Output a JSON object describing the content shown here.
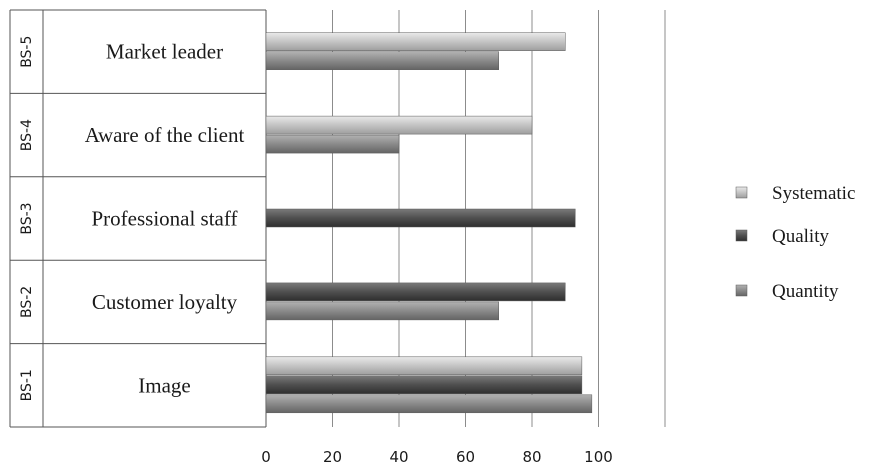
{
  "chart_data": {
    "type": "bar",
    "orientation": "horizontal",
    "title": "",
    "xlabel": "",
    "ylabel": "",
    "xlim": [
      0,
      120
    ],
    "ticks": [
      "0",
      "20",
      "40",
      "60",
      "80",
      "100"
    ],
    "grid": true,
    "legend_position": "right",
    "categories": [
      {
        "code": "BS-5",
        "label": "Market leader"
      },
      {
        "code": "BS-4",
        "label": "Aware of the client"
      },
      {
        "code": "BS-3",
        "label": "Professional staff"
      },
      {
        "code": "BS-2",
        "label": "Customer loyalty"
      },
      {
        "code": "BS-1",
        "label": "Image"
      }
    ],
    "series": [
      {
        "name": "Systematic",
        "color": "#c4c4c4",
        "values": [
          90,
          80,
          0,
          0,
          95
        ]
      },
      {
        "name": "Quality",
        "color": "#4f4f4f",
        "values": [
          0,
          0,
          93,
          90,
          95
        ]
      },
      {
        "name": "Quantity",
        "color": "#8a8a8a",
        "values": [
          70,
          40,
          0,
          70,
          98
        ]
      }
    ]
  }
}
